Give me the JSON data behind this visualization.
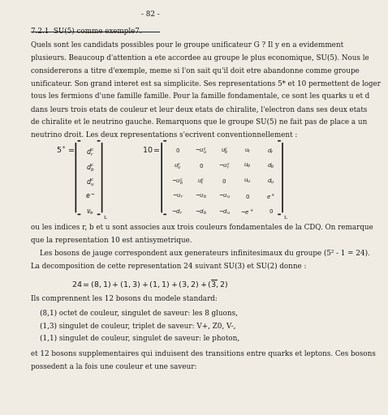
{
  "page_number": "- 82 -",
  "background_color": "#f0ece4",
  "text_color": "#1a1a1a",
  "section_title": "7.2.1  SU(5) comme exemple",
  "section_title_sup": "7",
  "body_lines": [
    "Quels sont les candidats possibles pour le groupe unificateur G ? Il y en a evidemment",
    "plusieurs. Beaucoup d'attention a ete accordee au groupe le plus economique, SU(5). Nous le",
    "considererons a titre d'exemple, meme si l'on sait qu'il doit etre abandonne comme groupe",
    "unificateur. Son grand interet est sa simplicite. Ses representations 5* et 10 permettent de loger",
    "tous les fermions d'une famille famille. Pour la famille fondamentale, ce sont les quarks u et d",
    "dans leurs trois etats de couleur et leur deux etats de chiralite, l'electron dans ses deux etats",
    "de chiralite et le neutrino gauche. Remarquons que le groupe SU(5) ne fait pas de place a un",
    "neutrino droit. Les deux representations s'ecrivent conventionnellement :"
  ],
  "where_text1": "ou les indices r, b et u sont associes aux trois couleurs fondamentales de la CDQ. On remarque",
  "where_text2": "que la representation 10 est antisymetrique.",
  "boson_text1": "    Les bosons de jauge correspondent aux generateurs infinitesimaux du groupe (5² - 1 = 24).",
  "boson_text2": "La decomposition de cette representation 24 suivant SU(3) et SU(2) donne :",
  "ils_text": "Ils comprennent les 12 bosons du modele standard:",
  "bullet1": "    (8,1) octet de couleur, singulet de saveur: les 8 gluons,",
  "bullet2": "    (1,3) singulet de couleur, triplet de saveur: V+, Z0, V-,",
  "bullet3": "    (1,1) singulet de couleur, singulet de saveur: le photon,",
  "et_text1": "et 12 bosons supplementaires qui induisent des transitions entre quarks et leptons. Ces bosons",
  "et_text2": "possedent a la fois une couleur et une saveur:"
}
